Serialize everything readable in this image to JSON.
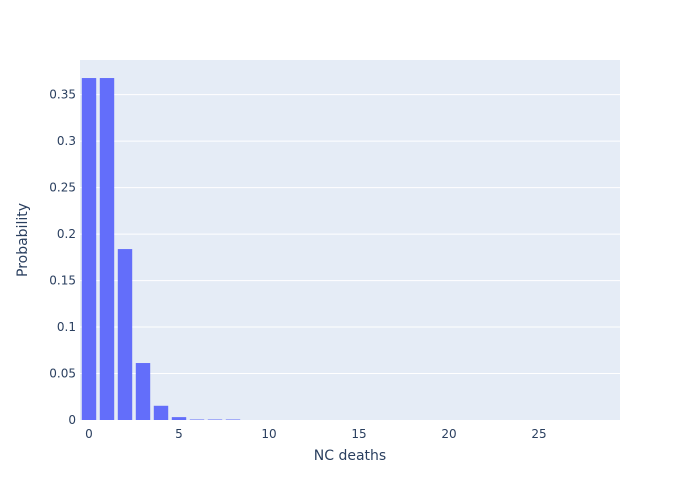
{
  "chart_data": {
    "type": "bar",
    "xlabel": "NC deaths",
    "ylabel": "Probability",
    "x_ticks": [
      0,
      5,
      10,
      15,
      20,
      25
    ],
    "y_ticks": [
      0,
      0.05,
      0.1,
      0.15,
      0.2,
      0.25,
      0.3,
      0.35
    ],
    "xlim": [
      -0.5,
      29.5
    ],
    "ylim": [
      0,
      0.3873
    ],
    "grid": true,
    "colors": {
      "bar": "#636efa",
      "plot_bg": "#e5ecf6",
      "grid": "#ffffff",
      "text": "#2a3f5f"
    },
    "x": [
      0,
      1,
      2,
      3,
      4,
      5,
      6,
      7,
      8,
      9,
      10,
      11,
      12,
      13,
      14,
      15,
      16,
      17,
      18,
      19,
      20,
      21,
      22,
      23,
      24,
      25,
      26,
      27,
      28,
      29
    ],
    "values": [
      0.3679,
      0.3679,
      0.1839,
      0.0613,
      0.0153,
      0.0031,
      0.0005,
      7e-05,
      1e-05,
      0,
      0,
      0,
      0,
      0,
      0,
      0,
      0,
      0,
      0,
      0,
      0,
      0,
      0,
      0,
      0,
      0,
      0,
      0,
      0,
      0
    ]
  }
}
